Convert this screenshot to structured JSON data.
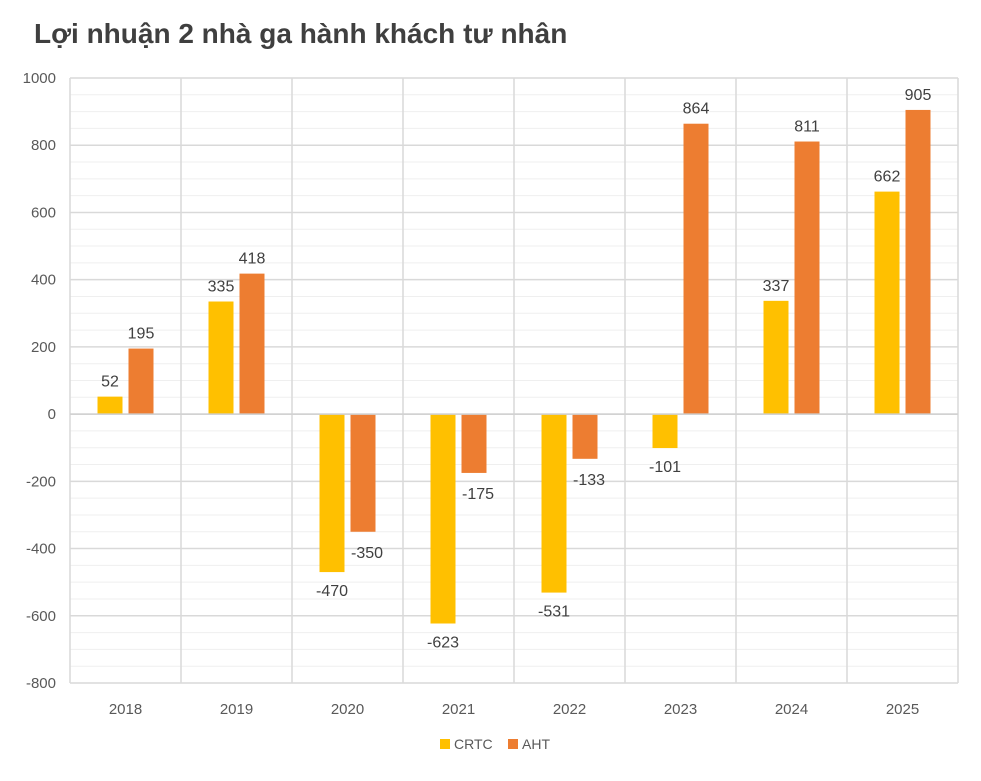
{
  "colors": {
    "CRTC": "#ffc000",
    "AHT": "#ed7d31",
    "grid_major": "#d9d9d9",
    "grid_minor": "#efefef",
    "text": "#595959",
    "title": "#3f3f3f"
  },
  "chart_data": {
    "type": "bar",
    "title": "Lợi nhuận 2 nhà ga hành khách tư nhân",
    "categories": [
      "2018",
      "2019",
      "2020",
      "2021",
      "2022",
      "2023",
      "2024",
      "2025"
    ],
    "series": [
      {
        "name": "CRTC",
        "values": [
          52,
          335,
          -470,
          -623,
          -531,
          -101,
          337,
          662
        ]
      },
      {
        "name": "AHT",
        "values": [
          195,
          418,
          -350,
          -175,
          -133,
          864,
          811,
          905
        ]
      }
    ],
    "ylim": [
      -800,
      1000
    ],
    "yticks": [
      1000,
      800,
      600,
      400,
      200,
      0,
      -200,
      -400,
      -600,
      -800
    ],
    "xlabel": "",
    "ylabel": "",
    "grid": true,
    "legend": "bottom"
  }
}
